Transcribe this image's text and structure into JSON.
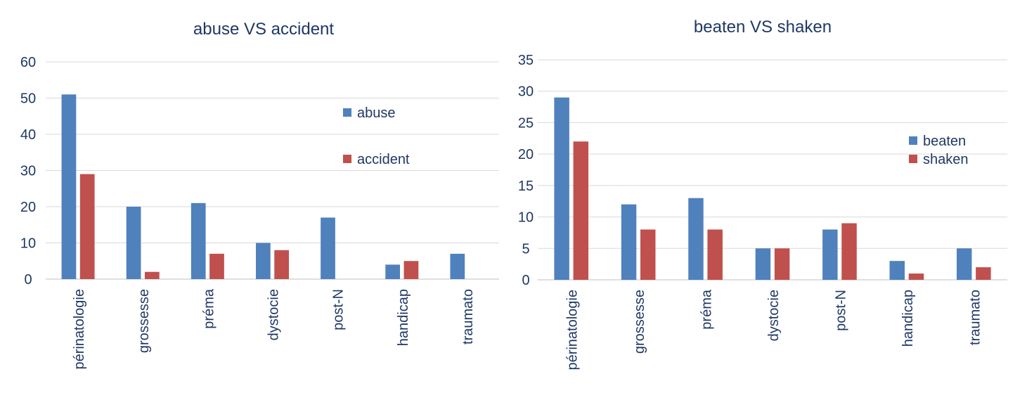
{
  "chart_data": [
    {
      "type": "bar",
      "title": "abuse VS accident",
      "categories": [
        "périnatologie",
        "grossesse",
        "préma",
        "dystocie",
        "post-N",
        "handicap",
        "traumato"
      ],
      "series": [
        {
          "name": "abuse",
          "color": "#4f81bd",
          "values": [
            51,
            20,
            21,
            10,
            17,
            4,
            7
          ]
        },
        {
          "name": "accident",
          "color": "#c0504d",
          "values": [
            29,
            2,
            7,
            8,
            0,
            5,
            0
          ]
        }
      ],
      "ylim": [
        0,
        60
      ],
      "yticks": [
        0,
        10,
        20,
        30,
        40,
        50,
        60
      ],
      "legend_position": "right",
      "grid": true
    },
    {
      "type": "bar",
      "title": "beaten VS shaken",
      "categories": [
        "périnatologie",
        "grossesse",
        "préma",
        "dystocie",
        "post-N",
        "handicap",
        "traumato"
      ],
      "series": [
        {
          "name": "beaten",
          "color": "#4f81bd",
          "values": [
            29,
            12,
            13,
            5,
            8,
            3,
            5
          ]
        },
        {
          "name": "shaken",
          "color": "#c0504d",
          "values": [
            22,
            8,
            8,
            5,
            9,
            1,
            2
          ]
        }
      ],
      "ylim": [
        0,
        35
      ],
      "yticks": [
        0,
        5,
        10,
        15,
        20,
        25,
        30,
        35
      ],
      "legend_position": "right",
      "grid": true
    }
  ]
}
